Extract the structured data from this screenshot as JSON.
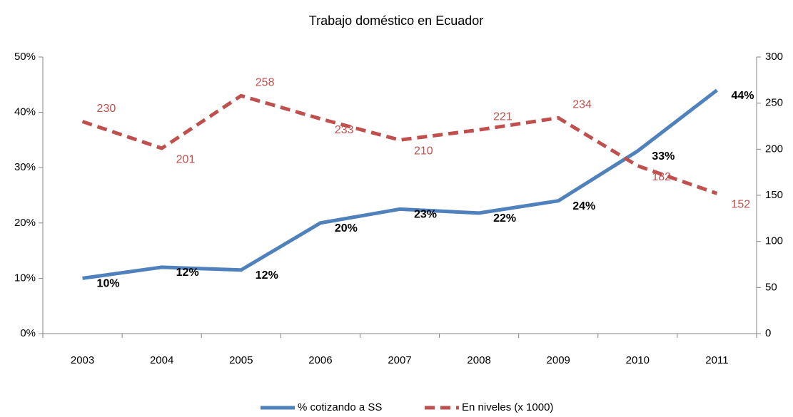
{
  "chart_data": {
    "type": "line",
    "title": "Trabajo doméstico en Ecuador",
    "categories": [
      "2003",
      "2004",
      "2005",
      "2006",
      "2007",
      "2008",
      "2009",
      "2010",
      "2011"
    ],
    "series": [
      {
        "name": "% cotizando a SS",
        "color": "#4f81bd",
        "dash": false,
        "axis": "y",
        "values": [
          10,
          12,
          11.5,
          20,
          22.5,
          21.8,
          24,
          33,
          44
        ],
        "value_labels": [
          "10%",
          "12%",
          "12%",
          "20%",
          "23%",
          "22%",
          "24%",
          "33%",
          "44%"
        ]
      },
      {
        "name": "En niveles (x 1000)",
        "color": "#c0504d",
        "dash": true,
        "axis": "y2",
        "values": [
          230,
          201,
          258,
          233,
          210,
          221,
          234,
          182,
          152
        ]
      }
    ],
    "ylim": [
      0,
      50
    ],
    "yticks": [
      {
        "value": 0,
        "label": "0%"
      },
      {
        "value": 10,
        "label": "10%"
      },
      {
        "value": 20,
        "label": "20%"
      },
      {
        "value": 30,
        "label": "30%"
      },
      {
        "value": 40,
        "label": "40%"
      },
      {
        "value": 50,
        "label": "50%"
      }
    ],
    "y2lim": [
      0,
      300
    ],
    "y2ticks": [
      0,
      50,
      100,
      150,
      200,
      250,
      300
    ],
    "legend": "bottom"
  }
}
